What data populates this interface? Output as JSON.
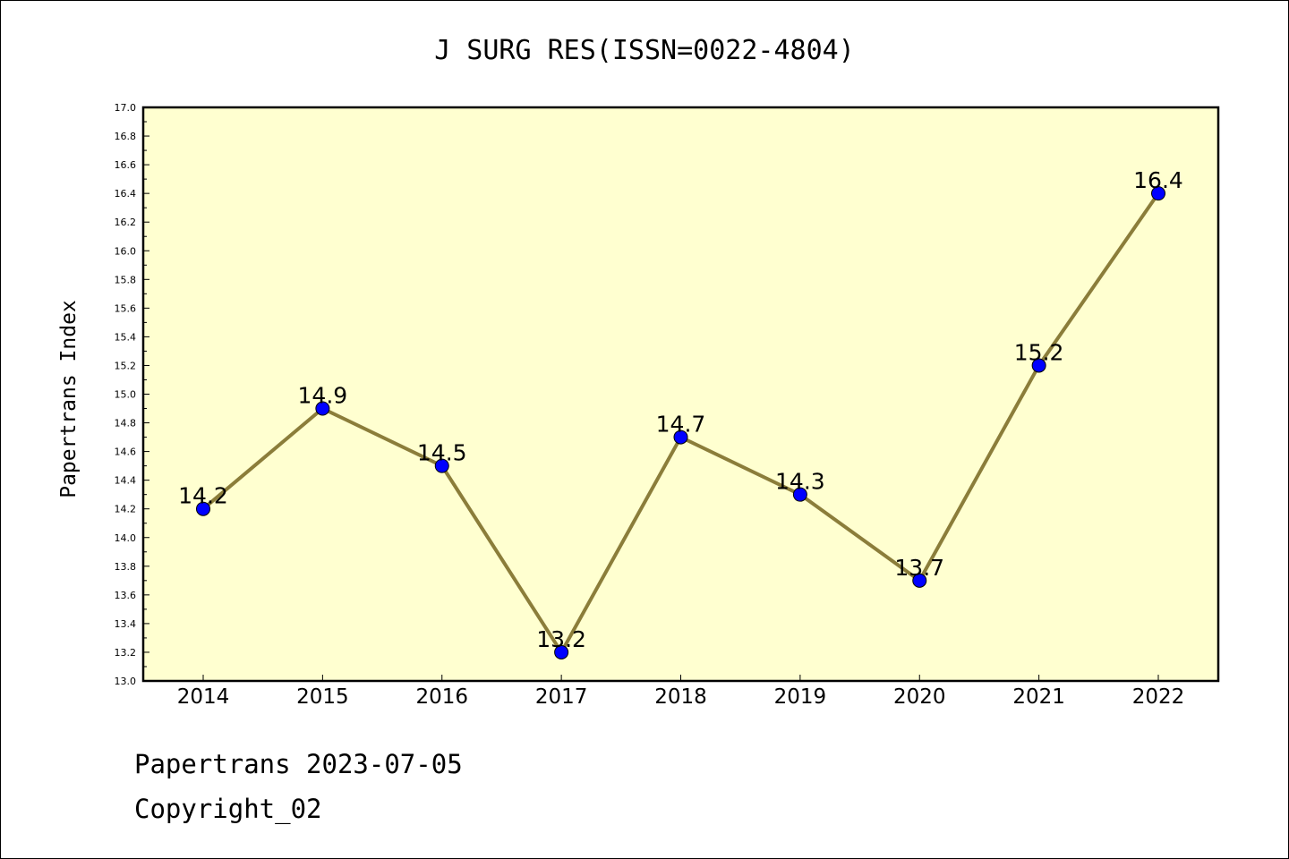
{
  "chart_data": {
    "type": "line",
    "title": "J SURG RES(ISSN=0022-4804)",
    "xlabel": "",
    "ylabel": "Papertrans Index",
    "categories": [
      "2014",
      "2015",
      "2016",
      "2017",
      "2018",
      "2019",
      "2020",
      "2021",
      "2022"
    ],
    "values": [
      14.2,
      14.9,
      14.5,
      13.2,
      14.7,
      14.3,
      13.7,
      15.2,
      16.4
    ],
    "data_labels": [
      "14.2",
      "14.9",
      "14.5",
      "13.2",
      "14.7",
      "14.3",
      "13.7",
      "15.2",
      "16.4"
    ],
    "ylim": [
      13.0,
      17.0
    ],
    "yticks": [
      "13.0",
      "13.2",
      "13.4",
      "13.6",
      "13.8",
      "14.0",
      "14.2",
      "14.4",
      "14.6",
      "14.8",
      "15.0",
      "15.2",
      "15.4",
      "15.6",
      "15.8",
      "16.0",
      "16.2",
      "16.4",
      "16.6",
      "16.8",
      "17.0"
    ],
    "grid": false,
    "colors": {
      "plot_background": "#ffffd0",
      "line": "#8b7d3a",
      "marker": "#0000ff",
      "marker_edge": "#000000"
    }
  },
  "footer": {
    "line1": "Papertrans 2023-07-05",
    "line2": "Copyright_02"
  }
}
